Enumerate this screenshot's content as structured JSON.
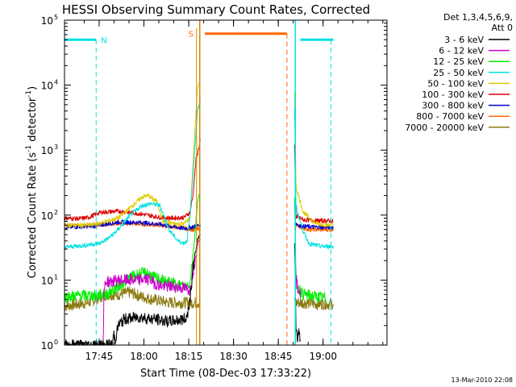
{
  "chart_data": {
    "type": "line",
    "title": "HESSI Observing Summary Count Rates, Corrected",
    "xlabel": "Start Time (08-Dec-03 17:33:22)",
    "ylabel_main": "Corrected Count Rate (s",
    "ylabel_sup": "-1",
    "ylabel_mid": " detector",
    "ylabel_end": ")",
    "x_unit": "minutes after 17:33:22",
    "xlim": [
      0,
      108
    ],
    "ylim": [
      1,
      100000
    ],
    "yscale": "log",
    "x_ticks": [
      {
        "x": 11.6,
        "label": "17:45"
      },
      {
        "x": 26.6,
        "label": "18:00"
      },
      {
        "x": 41.6,
        "label": "18:15"
      },
      {
        "x": 56.6,
        "label": "18:30"
      },
      {
        "x": 71.6,
        "label": "18:45"
      },
      {
        "x": 86.6,
        "label": "19:00"
      }
    ],
    "y_ticks": [
      {
        "value": 1,
        "base": "10",
        "exp": "0"
      },
      {
        "value": 10,
        "base": "10",
        "exp": "1"
      },
      {
        "value": 100,
        "base": "10",
        "exp": "2"
      },
      {
        "value": 1000,
        "base": "10",
        "exp": "3"
      },
      {
        "value": 10000,
        "base": "10",
        "exp": "4"
      },
      {
        "value": 100000,
        "base": "10",
        "exp": "5"
      }
    ],
    "legend": {
      "title_line1": "Det 1,3,4,5,6,9,",
      "title_line2": "Att 0",
      "placement": "right"
    },
    "data_gap": [
      45.5,
      77
    ],
    "series": [
      {
        "name": "3 - 6 keV",
        "color": "#000000",
        "x": [
          0,
          15.8,
          16,
          16.5,
          17,
          18,
          20,
          25,
          30,
          35,
          40,
          41,
          42,
          43,
          43.7,
          44.5,
          45.5,
          77,
          77.5,
          78,
          78.5,
          79
        ],
        "y": [
          1,
          1,
          1,
          1.5,
          1.2,
          2,
          2.5,
          2.7,
          2.5,
          2.3,
          2.5,
          2.7,
          5,
          15,
          25,
          40,
          50,
          50,
          2,
          1.3,
          1.8,
          1
        ]
      },
      {
        "name": "6 - 12 keV",
        "color": "#cc00cc",
        "x": [
          12,
          12.5,
          13,
          13.2,
          13.6,
          14,
          14.5,
          15,
          15.8,
          16,
          18,
          20,
          23,
          25,
          27,
          29,
          30,
          33,
          36,
          40,
          42,
          43.7,
          44.5,
          45.5,
          77,
          77.5,
          78,
          78.5,
          79
        ],
        "y": [
          1,
          1,
          1,
          6,
          9,
          9.5,
          9.5,
          9.5,
          9.5,
          9.5,
          10,
          10,
          10,
          10,
          10.5,
          10,
          9,
          8,
          8,
          7.5,
          7,
          20,
          35,
          45,
          45,
          10,
          8,
          7,
          6
        ]
      },
      {
        "name": "12 - 25 keV",
        "color": "#00ee00",
        "x": [
          0,
          5,
          10,
          14,
          18,
          22,
          25,
          27.5,
          30,
          34,
          38,
          40,
          42,
          43.5,
          44.5,
          45.5,
          77,
          77.5,
          78,
          80,
          85,
          88
        ],
        "y": [
          5.5,
          5.8,
          5.8,
          6,
          8,
          11,
          12.5,
          13,
          11,
          9.5,
          8.5,
          8,
          9,
          40,
          150,
          250,
          250,
          11,
          8,
          6,
          5.5,
          5.2
        ]
      },
      {
        "name": "25 - 50 keV",
        "color": "#00e0e0",
        "x": [
          0,
          6,
          12,
          15,
          18,
          22,
          26,
          29,
          32,
          35,
          38,
          40,
          41,
          42,
          43.5,
          44.5,
          45.5,
          77,
          77.5,
          78,
          80,
          82,
          86,
          90
        ],
        "y": [
          32,
          34,
          37,
          45,
          60,
          100,
          140,
          150,
          140,
          60,
          40,
          37,
          40,
          90,
          900,
          4000,
          6000,
          6000,
          150,
          110,
          55,
          36,
          33,
          33
        ]
      },
      {
        "name": "50 - 100 keV",
        "color": "#ddcc00",
        "x": [
          0,
          8,
          12,
          18,
          22,
          26,
          28,
          31,
          33,
          36,
          40,
          42,
          43.5,
          44.5,
          45.5,
          77,
          77.5,
          78,
          80,
          84,
          88,
          90
        ],
        "y": [
          70,
          70,
          75,
          90,
          130,
          190,
          200,
          160,
          80,
          75,
          73,
          90,
          1500,
          9000,
          11000,
          11000,
          300,
          230,
          110,
          75,
          70,
          70
        ]
      },
      {
        "name": "100 - 300 keV",
        "color": "#dd0000",
        "x": [
          0,
          5,
          8,
          12,
          18,
          22,
          25,
          28,
          32,
          36,
          40,
          42,
          43,
          44,
          45.5,
          77,
          77.5,
          78,
          80,
          84,
          88,
          90
        ],
        "y": [
          90,
          88,
          92,
          110,
          115,
          110,
          105,
          100,
          92,
          90,
          92,
          110,
          200,
          700,
          1400,
          1400,
          90,
          95,
          85,
          82,
          82,
          80
        ]
      },
      {
        "name": "300 - 800 keV",
        "color": "#0000cc",
        "x": [
          0,
          10,
          18,
          25,
          32,
          40,
          43,
          45.5,
          77,
          77.5,
          79,
          82,
          86,
          90
        ],
        "y": [
          65,
          68,
          78,
          77,
          72,
          62,
          66,
          70,
          70,
          75,
          68,
          66,
          65,
          65
        ]
      },
      {
        "name": "800 - 7000 keV",
        "color": "#ff6600",
        "x": [
          0,
          10,
          18,
          25,
          32,
          40,
          43,
          45.5,
          77,
          77.5,
          79,
          82,
          86,
          90
        ],
        "y": [
          68,
          70,
          75,
          73,
          70,
          63,
          60,
          60,
          60,
          70,
          65,
          60,
          60,
          60
        ]
      },
      {
        "name": "7000 - 20000 keV",
        "color": "#8b7a10",
        "x": [
          0,
          8,
          14,
          18,
          22,
          26,
          30,
          35,
          40,
          43,
          45.5,
          77,
          77.5,
          80,
          85,
          90
        ],
        "y": [
          4,
          4.5,
          6,
          6,
          6.5,
          5.5,
          5,
          4.5,
          4.5,
          4.5,
          4.5,
          4.5,
          4.5,
          4.5,
          4.3,
          4.3
        ]
      }
    ],
    "annotations": {
      "night_level": 50000,
      "night_segments": [
        [
          0,
          10.6
        ],
        [
          79,
          90
        ]
      ],
      "night_color": "#00e0e0",
      "night_label": "N",
      "night_markers": [
        10.6,
        77.3,
        89.2
      ],
      "saa_level": 62000,
      "saa_segment": [
        47,
        74.5
      ],
      "saa_color": "#ff6600",
      "saa_label": "S",
      "saa_markers": [
        45.3,
        74.5
      ],
      "saa_edge_color": "#cc8800"
    }
  },
  "footer": {
    "date_stamp": "13-Mar-2010 22:08"
  }
}
